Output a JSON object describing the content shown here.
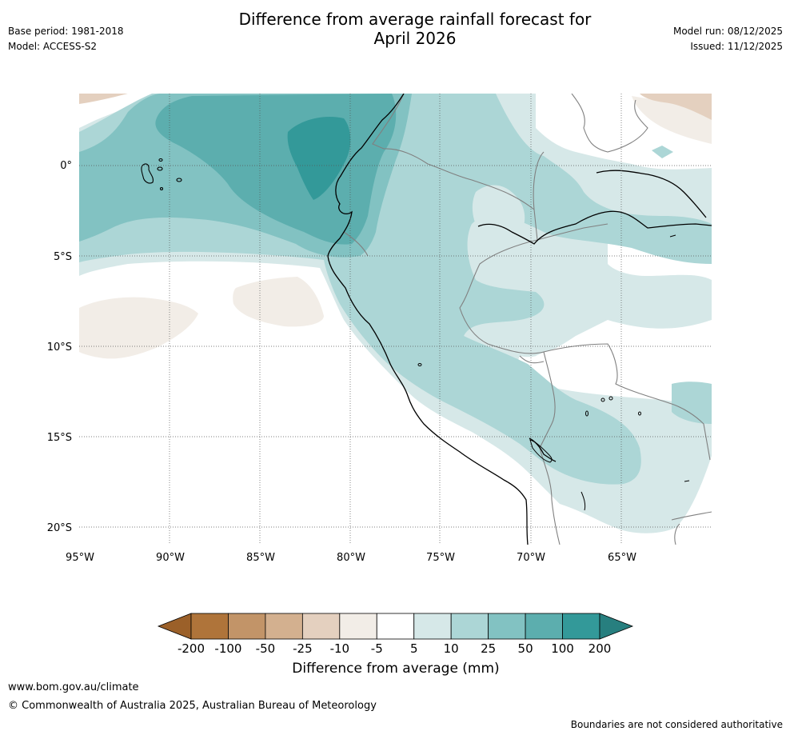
{
  "title_line1": "Difference from average rainfall forecast for",
  "title_line2": "April 2026",
  "base_period": "Base period: 1981-2018",
  "model": "Model: ACCESS-S2",
  "model_run": "Model run: 08/12/2025",
  "issued": "Issued: 11/12/2025",
  "lat_labels": [
    "0°",
    "5°S",
    "10°S",
    "15°S",
    "20°S"
  ],
  "lon_labels": [
    "95°W",
    "90°W",
    "85°W",
    "80°W",
    "75°W",
    "70°W",
    "65°W"
  ],
  "colorbar": {
    "label": "Difference from average (mm)",
    "ticks": [
      "-200",
      "-100",
      "-50",
      "-25",
      "-10",
      "-5",
      "5",
      "10",
      "25",
      "50",
      "100",
      "200"
    ],
    "colors": [
      "#9b6029",
      "#af743a",
      "#c29468",
      "#d3b08f",
      "#e4d0bf",
      "#f2ede7",
      "#ffffff",
      "#d6e8e8",
      "#acd6d6",
      "#82c2c2",
      "#5caeae",
      "#339999",
      "#277f7f"
    ]
  },
  "website": "www.bom.gov.au/climate",
  "copyright": "© Commonwealth of Australia 2025, Australian Bureau of Meteorology",
  "disclaimer": "Boundaries are not considered authoritative"
}
